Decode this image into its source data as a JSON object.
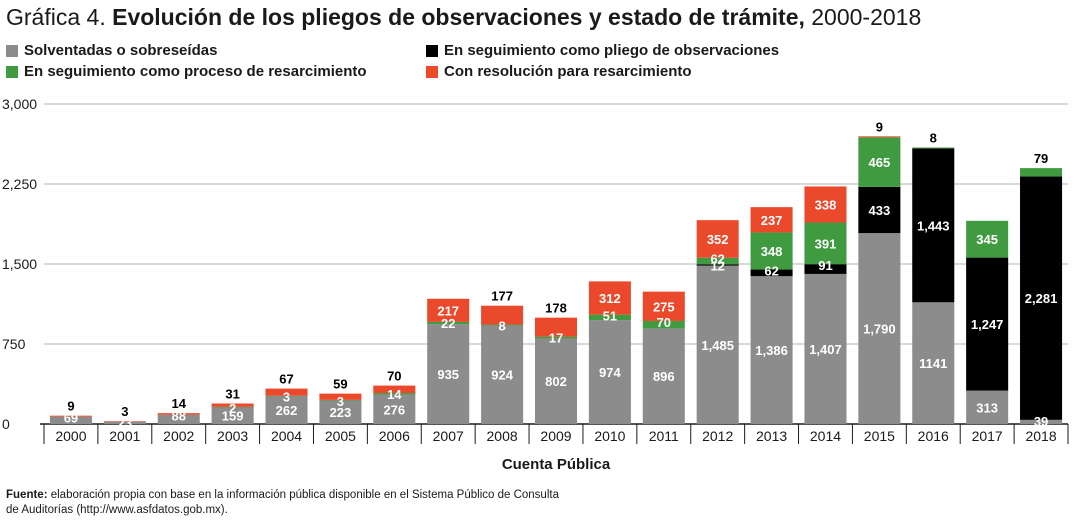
{
  "title": {
    "prefix": "Gráfica 4.",
    "main": "Evolución de los pliegos de observaciones y estado de trámite,",
    "years": "2000-2018"
  },
  "legend": [
    {
      "label": "Solventadas o sobreseídas",
      "color": "#8c8c8c"
    },
    {
      "label": "En seguimiento como pliego de observaciones",
      "color": "#000000"
    },
    {
      "label": "En seguimiento como proceso de resarcimiento",
      "color": "#3f9a40"
    },
    {
      "label": "Con resolución para resarcimiento",
      "color": "#ea4a2b"
    }
  ],
  "source": {
    "label": "Fuente:",
    "text": "elaboración propia con base en la información pública disponible en el Sistema Público de Consulta de Auditorías (http://www.asfdatos.gob.mx)."
  },
  "chart_data": {
    "type": "bar",
    "stacked": true,
    "xlabel": "Cuenta Pública",
    "ylabel": "",
    "ylim": [
      0,
      3000
    ],
    "yticks": [
      0,
      750,
      1500,
      2250,
      3000
    ],
    "ytick_labels": [
      "0",
      "750",
      "1,500",
      "2,250",
      "3,000"
    ],
    "grid": true,
    "legend_position": "top",
    "categories": [
      "2000",
      "2001",
      "2002",
      "2003",
      "2004",
      "2005",
      "2006",
      "2007",
      "2008",
      "2009",
      "2010",
      "2011",
      "2012",
      "2013",
      "2014",
      "2015",
      "2016",
      "2017",
      "2018"
    ],
    "series": [
      {
        "name": "Solventadas o sobreseídas",
        "color": "#8c8c8c",
        "values": [
          69,
          23,
          88,
          159,
          262,
          223,
          276,
          935,
          924,
          802,
          974,
          896,
          1485,
          1386,
          1407,
          1790,
          1141,
          313,
          39
        ],
        "labels": [
          "69",
          "23",
          "88",
          "159",
          "262",
          "223",
          "276",
          "935",
          "924",
          "802",
          "974",
          "896",
          "1,485",
          "1,386",
          "1,407",
          "1,790",
          "1141",
          "313",
          "39"
        ]
      },
      {
        "name": "En seguimiento como pliego de observaciones",
        "color": "#000000",
        "values": [
          0,
          0,
          0,
          0,
          0,
          0,
          0,
          0,
          0,
          0,
          0,
          0,
          12,
          62,
          91,
          433,
          1443,
          1247,
          2281
        ],
        "labels": [
          "",
          "",
          "",
          "",
          "",
          "",
          "",
          "",
          "",
          "",
          "",
          "",
          "12",
          "62",
          "91",
          "433",
          "1,443",
          "1,247",
          "2,281"
        ]
      },
      {
        "name": "En seguimiento como proceso de resarcimiento",
        "color": "#3f9a40",
        "values": [
          0,
          0,
          0,
          2,
          3,
          3,
          14,
          22,
          8,
          17,
          51,
          70,
          62,
          348,
          391,
          465,
          8,
          345,
          79
        ],
        "labels": [
          "",
          "",
          "",
          "2",
          "3",
          "3",
          "14",
          "22",
          "8",
          "17",
          "51",
          "70",
          "62",
          "348",
          "391",
          "465",
          "8",
          "345",
          "79"
        ]
      },
      {
        "name": "Con resolución para resarcimiento",
        "color": "#ea4a2b",
        "values": [
          9,
          3,
          14,
          31,
          67,
          59,
          70,
          217,
          177,
          178,
          312,
          275,
          352,
          237,
          338,
          9,
          0,
          0,
          0
        ],
        "labels": [
          "9",
          "3",
          "14",
          "31",
          "67",
          "59",
          "70",
          "217",
          "177",
          "178",
          "312",
          "275",
          "352",
          "237",
          "338",
          "9",
          "",
          "",
          ""
        ]
      }
    ]
  }
}
